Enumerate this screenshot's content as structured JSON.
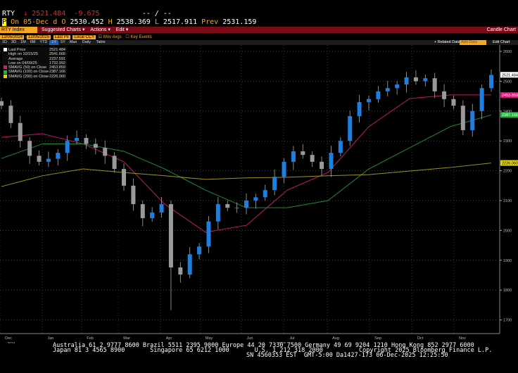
{
  "header": {
    "ticker": "RTY",
    "arrow": "↓",
    "last": "2521.484",
    "change": "-9.675",
    "bidask": "-- / --",
    "date_label": "On 05-Dec d",
    "open_label": "O",
    "open": "2530.452",
    "high_label": "H",
    "high": "2538.369",
    "low_label": "L",
    "low": "2517.911",
    "prev_label": "Prev",
    "prev": "2531.159"
  },
  "toolbar": {
    "security": "RTY Index",
    "suggested": "Suggested Charts",
    "actions": "Actions",
    "edit": "Edit",
    "chart_type": "Candle Chart",
    "start_date": "12/05/2024",
    "end_date": "12/05/2025",
    "line_style": "Last Px",
    "currency": "Local CCY",
    "mov_avgs": "Mov Avgs",
    "key_events": "Key Events",
    "periods": [
      "1D",
      "3D",
      "1M",
      "6M",
      "YTD",
      "1Y",
      "5Y",
      "Max"
    ],
    "active_period": "1Y",
    "frequency": "Daily",
    "table": "Table",
    "related": "Related Data",
    "add_data": "Add Data",
    "edit_chart": "Edit Chart"
  },
  "legend": [
    {
      "label": "Last Price",
      "value": "2521.484",
      "color": "#ffffff"
    },
    {
      "label": "High on 10/15/25",
      "value": "2541.666",
      "color": ""
    },
    {
      "label": "Average",
      "value": "2237.591",
      "color": ""
    },
    {
      "label": "Low on 04/09/25",
      "value": "1732.992",
      "color": ""
    },
    {
      "label": "SMAVG (50)  on Close",
      "value": "2453.859",
      "color": "#e0157a"
    },
    {
      "label": "SMAVG (100)  on Close",
      "value": "2387.166",
      "color": "#1fb53a"
    },
    {
      "label": "SMAVG (200)  on Close",
      "value": "2226.060",
      "color": "#e0d21f"
    }
  ],
  "chart_data": {
    "type": "candlestick",
    "ylim": [
      1680,
      2620
    ],
    "yticks": [
      1700,
      1800,
      1900,
      2000,
      2100,
      2200,
      2300,
      2400,
      2500,
      2600
    ],
    "months": [
      "Dec",
      "Jan",
      "Feb",
      "Mar",
      "Apr",
      "May",
      "Jun",
      "Jul",
      "Aug",
      "Sep",
      "Oct",
      "Nov"
    ],
    "years": [
      "2024",
      "2025"
    ],
    "weekly_close": [
      2418,
      2360,
      2300,
      2250,
      2230,
      2240,
      2260,
      2300,
      2310,
      2290,
      2277,
      2250,
      2206,
      2150,
      2088,
      2041,
      2060,
      2088,
      1876,
      1852,
      1920,
      1946,
      2030,
      2088,
      2076,
      2076,
      2100,
      2111,
      2135,
      2180,
      2230,
      2265,
      2253,
      2230,
      2206,
      2260,
      2300,
      2383,
      2430,
      2440,
      2466,
      2477,
      2489,
      2513,
      2500,
      2510,
      2466,
      2440,
      2418,
      2336,
      2400,
      2477,
      2521
    ],
    "series": [
      {
        "name": "SMAVG (50)",
        "color": "#c0176a",
        "monthly": [
          2312,
          2324,
          2290,
          2230,
          2088,
          1994,
          2017,
          2135,
          2194,
          2348,
          2442,
          2454,
          2454
        ]
      },
      {
        "name": "SMAVG (100)",
        "color": "#1f8a33",
        "monthly": [
          2241,
          2290,
          2290,
          2265,
          2206,
          2135,
          2076,
          2076,
          2100,
          2206,
          2277,
          2348,
          2387
        ]
      },
      {
        "name": "SMAVG (200)",
        "color": "#9c9220",
        "monthly": [
          2147,
          2183,
          2206,
          2194,
          2183,
          2171,
          2176,
          2178,
          2183,
          2187,
          2199,
          2211,
          2226
        ]
      }
    ],
    "price_tags": [
      {
        "value": "2521.484",
        "bg": "#ffffff",
        "fg": "#000"
      },
      {
        "value": "2453.859",
        "bg": "#e0157a",
        "fg": "#fff"
      },
      {
        "value": "2387.166",
        "bg": "#1fb53a",
        "fg": "#fff"
      },
      {
        "value": "2226.060",
        "bg": "#e0d21f",
        "fg": "#000"
      }
    ]
  },
  "footer": {
    "line1": "Australia 61 2 9777 8600 Brazil 5511 2395 9000 Europe 44 20 7330 7500 Germany 49 69 9204 1210 Hong Kong 852 2977 6000",
    "line2": "Japan 81 3 4565 8900       Singapore 65 6212 1000       U.S. 1 212 318 2000          Copyright 2025 Bloomberg Finance L.P.",
    "line3": "SN 4560353 EST  GMT-5:00 Da1427-173 06-Dec-2025 12:25:50"
  }
}
